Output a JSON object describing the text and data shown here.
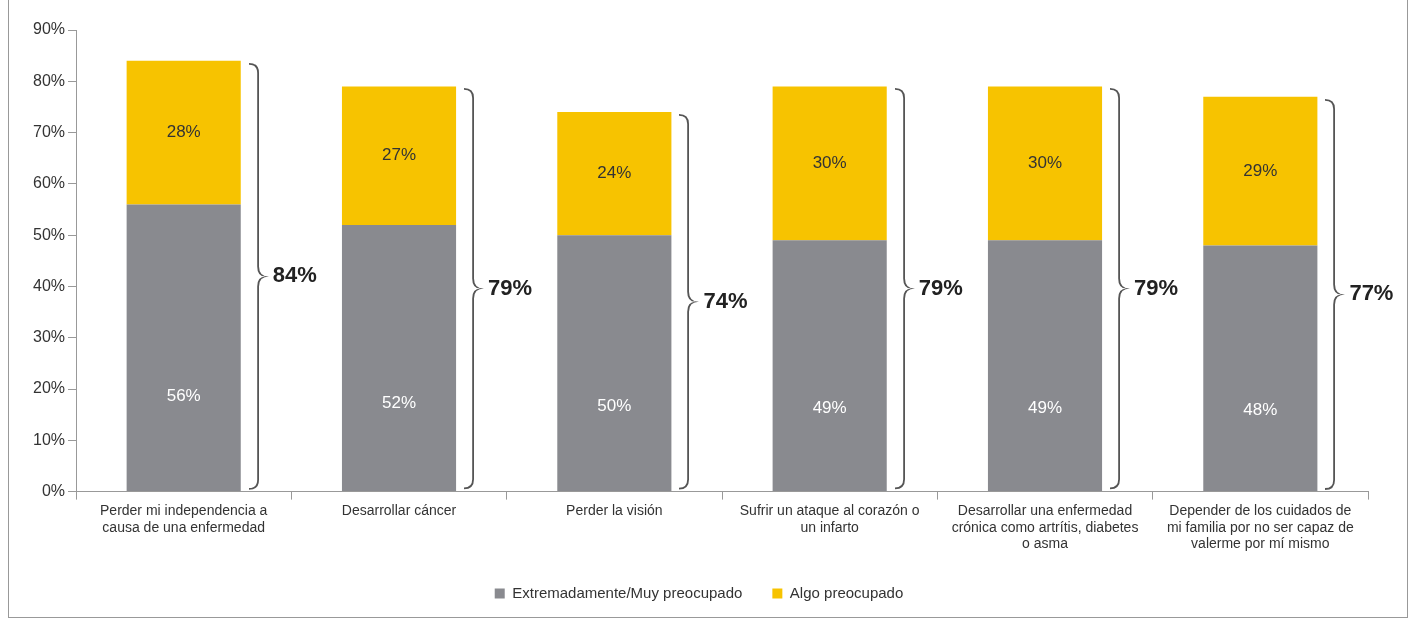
{
  "chart_data": {
    "type": "bar",
    "stacked": true,
    "categories": [
      "Perder mi independencia a causa de una enfermedad",
      "Desarrollar cáncer",
      "Perder la visión",
      "Sufrir un ataque al corazón o un infarto",
      "Desarrollar una enfermedad crónica como artrítis, diabetes o asma",
      "Depender de los cuidados de mi familia por no ser capaz de valerme por mí mismo"
    ],
    "series": [
      {
        "name": "Extremadamente/Muy preocupado",
        "color": "#898a8f",
        "values": [
          56,
          52,
          50,
          49,
          49,
          48
        ]
      },
      {
        "name": "Algo preocupado",
        "color": "#f7c300",
        "values": [
          28,
          27,
          24,
          30,
          30,
          29
        ]
      }
    ],
    "value_labels": [
      [
        "56%",
        "52%",
        "50%",
        "49%",
        "49%",
        "48%"
      ],
      [
        "28%",
        "27%",
        "24%",
        "30%",
        "30%",
        "29%"
      ]
    ],
    "totals": [
      "84%",
      "79%",
      "74%",
      "79%",
      "79%",
      "77%"
    ],
    "ylim": [
      0,
      90
    ],
    "yticks": [
      {
        "value": 0,
        "label": "0%"
      },
      {
        "value": 10,
        "label": "10%"
      },
      {
        "value": 20,
        "label": "20%"
      },
      {
        "value": 30,
        "label": "30%"
      },
      {
        "value": 40,
        "label": "40%"
      },
      {
        "value": 50,
        "label": "50%"
      },
      {
        "value": 60,
        "label": "60%"
      },
      {
        "value": 70,
        "label": "70%"
      },
      {
        "value": 80,
        "label": "80%"
      },
      {
        "value": 90,
        "label": "90%"
      }
    ],
    "grid": false,
    "legend": "bottom"
  }
}
